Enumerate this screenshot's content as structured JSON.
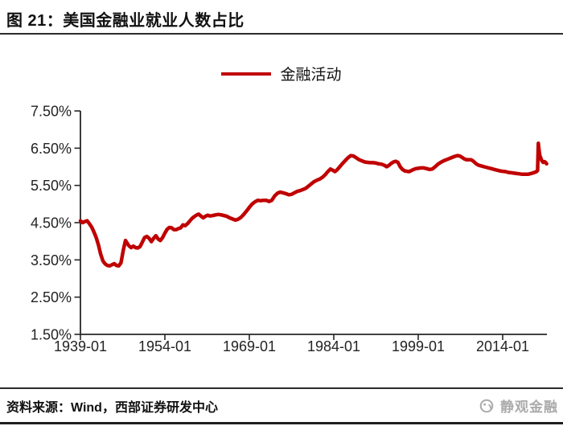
{
  "header": {
    "title": "图 21：美国金融业就业人数占比"
  },
  "legend": {
    "label": "金融活动",
    "color": "#C00000"
  },
  "footer": {
    "source": "资料来源：Wind，西部证券研发中心",
    "watermark": "静观金融"
  },
  "chart_data": {
    "type": "line",
    "title": "美国金融业就业人数占比",
    "xlabel": "",
    "ylabel": "",
    "grid": false,
    "legend_position": "top-center",
    "ylim": [
      1.5,
      7.5
    ],
    "xlim": [
      1939.0,
      2021.9
    ],
    "y_ticks": [
      {
        "v": 7.5,
        "label": "7.50%"
      },
      {
        "v": 6.5,
        "label": "6.50%"
      },
      {
        "v": 5.5,
        "label": "5.50%"
      },
      {
        "v": 4.5,
        "label": "4.50%"
      },
      {
        "v": 3.5,
        "label": "3.50%"
      },
      {
        "v": 2.5,
        "label": "2.50%"
      },
      {
        "v": 1.5,
        "label": "1.50%"
      }
    ],
    "x_ticks": [
      {
        "v": 1939,
        "label": "1939-01"
      },
      {
        "v": 1954,
        "label": "1954-01"
      },
      {
        "v": 1969,
        "label": "1969-01"
      },
      {
        "v": 1984,
        "label": "1984-01"
      },
      {
        "v": 1999,
        "label": "1999-01"
      },
      {
        "v": 2014,
        "label": "2014-01"
      }
    ],
    "series": [
      {
        "name": "金融活动",
        "color": "#C00000",
        "points": [
          [
            1939.0,
            4.55
          ],
          [
            1939.4,
            4.5
          ],
          [
            1939.8,
            4.53
          ],
          [
            1940.2,
            4.55
          ],
          [
            1940.6,
            4.47
          ],
          [
            1941.0,
            4.38
          ],
          [
            1941.4,
            4.25
          ],
          [
            1941.8,
            4.1
          ],
          [
            1942.2,
            3.9
          ],
          [
            1942.6,
            3.65
          ],
          [
            1943.0,
            3.47
          ],
          [
            1943.4,
            3.39
          ],
          [
            1943.8,
            3.35
          ],
          [
            1944.2,
            3.34
          ],
          [
            1944.6,
            3.37
          ],
          [
            1945.0,
            3.4
          ],
          [
            1945.4,
            3.35
          ],
          [
            1945.8,
            3.34
          ],
          [
            1946.2,
            3.42
          ],
          [
            1946.6,
            3.75
          ],
          [
            1947.0,
            4.02
          ],
          [
            1947.3,
            3.95
          ],
          [
            1947.6,
            3.88
          ],
          [
            1948.0,
            3.83
          ],
          [
            1948.4,
            3.87
          ],
          [
            1948.8,
            3.83
          ],
          [
            1949.2,
            3.82
          ],
          [
            1949.6,
            3.86
          ],
          [
            1950.0,
            3.98
          ],
          [
            1950.4,
            4.1
          ],
          [
            1950.8,
            4.13
          ],
          [
            1951.2,
            4.08
          ],
          [
            1951.6,
            3.99
          ],
          [
            1952.0,
            4.08
          ],
          [
            1952.4,
            4.15
          ],
          [
            1952.8,
            4.06
          ],
          [
            1953.2,
            4.02
          ],
          [
            1953.6,
            4.1
          ],
          [
            1954.0,
            4.22
          ],
          [
            1954.4,
            4.32
          ],
          [
            1954.8,
            4.37
          ],
          [
            1955.2,
            4.36
          ],
          [
            1955.6,
            4.31
          ],
          [
            1956.0,
            4.31
          ],
          [
            1956.4,
            4.34
          ],
          [
            1956.8,
            4.36
          ],
          [
            1957.2,
            4.44
          ],
          [
            1957.6,
            4.42
          ],
          [
            1958.0,
            4.47
          ],
          [
            1958.4,
            4.54
          ],
          [
            1958.8,
            4.61
          ],
          [
            1959.2,
            4.66
          ],
          [
            1959.6,
            4.7
          ],
          [
            1960.0,
            4.73
          ],
          [
            1960.4,
            4.68
          ],
          [
            1960.8,
            4.63
          ],
          [
            1961.2,
            4.67
          ],
          [
            1961.6,
            4.7
          ],
          [
            1962.0,
            4.68
          ],
          [
            1962.5,
            4.69
          ],
          [
            1963.0,
            4.71
          ],
          [
            1963.5,
            4.72
          ],
          [
            1964.0,
            4.71
          ],
          [
            1964.5,
            4.69
          ],
          [
            1965.0,
            4.67
          ],
          [
            1965.5,
            4.63
          ],
          [
            1966.0,
            4.6
          ],
          [
            1966.5,
            4.57
          ],
          [
            1967.0,
            4.59
          ],
          [
            1967.5,
            4.64
          ],
          [
            1968.0,
            4.72
          ],
          [
            1968.5,
            4.81
          ],
          [
            1969.0,
            4.91
          ],
          [
            1969.5,
            5.0
          ],
          [
            1970.0,
            5.06
          ],
          [
            1970.5,
            5.1
          ],
          [
            1971.0,
            5.09
          ],
          [
            1971.5,
            5.1
          ],
          [
            1972.0,
            5.1
          ],
          [
            1972.5,
            5.07
          ],
          [
            1973.0,
            5.1
          ],
          [
            1973.5,
            5.22
          ],
          [
            1974.0,
            5.29
          ],
          [
            1974.5,
            5.32
          ],
          [
            1975.0,
            5.3
          ],
          [
            1975.5,
            5.28
          ],
          [
            1976.0,
            5.25
          ],
          [
            1976.5,
            5.26
          ],
          [
            1977.0,
            5.3
          ],
          [
            1977.5,
            5.34
          ],
          [
            1978.0,
            5.36
          ],
          [
            1978.5,
            5.39
          ],
          [
            1979.0,
            5.42
          ],
          [
            1979.5,
            5.48
          ],
          [
            1980.0,
            5.54
          ],
          [
            1980.5,
            5.6
          ],
          [
            1981.0,
            5.64
          ],
          [
            1981.5,
            5.67
          ],
          [
            1982.0,
            5.72
          ],
          [
            1982.5,
            5.79
          ],
          [
            1983.0,
            5.88
          ],
          [
            1983.4,
            5.94
          ],
          [
            1983.8,
            5.91
          ],
          [
            1984.2,
            5.87
          ],
          [
            1984.6,
            5.92
          ],
          [
            1985.0,
            5.99
          ],
          [
            1985.5,
            6.08
          ],
          [
            1986.0,
            6.16
          ],
          [
            1986.5,
            6.24
          ],
          [
            1987.0,
            6.3
          ],
          [
            1987.5,
            6.29
          ],
          [
            1988.0,
            6.24
          ],
          [
            1988.5,
            6.19
          ],
          [
            1989.0,
            6.16
          ],
          [
            1989.5,
            6.13
          ],
          [
            1990.0,
            6.12
          ],
          [
            1990.5,
            6.11
          ],
          [
            1991.0,
            6.11
          ],
          [
            1991.5,
            6.1
          ],
          [
            1992.0,
            6.08
          ],
          [
            1992.5,
            6.07
          ],
          [
            1993.0,
            6.04
          ],
          [
            1993.4,
            6.0
          ],
          [
            1993.8,
            6.04
          ],
          [
            1994.2,
            6.09
          ],
          [
            1994.6,
            6.13
          ],
          [
            1995.0,
            6.15
          ],
          [
            1995.4,
            6.12
          ],
          [
            1995.8,
            6.0
          ],
          [
            1996.2,
            5.93
          ],
          [
            1996.6,
            5.89
          ],
          [
            1997.0,
            5.88
          ],
          [
            1997.4,
            5.87
          ],
          [
            1997.8,
            5.9
          ],
          [
            1998.2,
            5.93
          ],
          [
            1998.6,
            5.95
          ],
          [
            1999.0,
            5.96
          ],
          [
            1999.5,
            5.97
          ],
          [
            2000.0,
            5.97
          ],
          [
            2000.5,
            5.95
          ],
          [
            2001.0,
            5.93
          ],
          [
            2001.5,
            5.94
          ],
          [
            2002.0,
            6.0
          ],
          [
            2002.5,
            6.07
          ],
          [
            2003.0,
            6.12
          ],
          [
            2003.5,
            6.16
          ],
          [
            2004.0,
            6.19
          ],
          [
            2004.5,
            6.22
          ],
          [
            2005.0,
            6.25
          ],
          [
            2005.5,
            6.28
          ],
          [
            2006.0,
            6.3
          ],
          [
            2006.4,
            6.29
          ],
          [
            2006.8,
            6.25
          ],
          [
            2007.2,
            6.21
          ],
          [
            2007.6,
            6.19
          ],
          [
            2008.0,
            6.19
          ],
          [
            2008.4,
            6.19
          ],
          [
            2008.8,
            6.15
          ],
          [
            2009.2,
            6.09
          ],
          [
            2009.6,
            6.05
          ],
          [
            2010.0,
            6.03
          ],
          [
            2010.5,
            6.01
          ],
          [
            2011.0,
            5.99
          ],
          [
            2011.5,
            5.97
          ],
          [
            2012.0,
            5.95
          ],
          [
            2012.5,
            5.93
          ],
          [
            2013.0,
            5.91
          ],
          [
            2013.5,
            5.89
          ],
          [
            2014.0,
            5.88
          ],
          [
            2014.5,
            5.87
          ],
          [
            2015.0,
            5.85
          ],
          [
            2015.5,
            5.84
          ],
          [
            2016.0,
            5.83
          ],
          [
            2016.5,
            5.82
          ],
          [
            2017.0,
            5.81
          ],
          [
            2017.5,
            5.8
          ],
          [
            2018.0,
            5.8
          ],
          [
            2018.5,
            5.8
          ],
          [
            2019.0,
            5.82
          ],
          [
            2019.5,
            5.84
          ],
          [
            2020.0,
            5.87
          ],
          [
            2020.2,
            5.9
          ],
          [
            2020.33,
            6.63
          ],
          [
            2020.45,
            6.45
          ],
          [
            2020.6,
            6.3
          ],
          [
            2020.8,
            6.22
          ],
          [
            2021.0,
            6.15
          ],
          [
            2021.2,
            6.12
          ],
          [
            2021.4,
            6.14
          ],
          [
            2021.6,
            6.12
          ],
          [
            2021.8,
            6.08
          ]
        ]
      }
    ]
  }
}
